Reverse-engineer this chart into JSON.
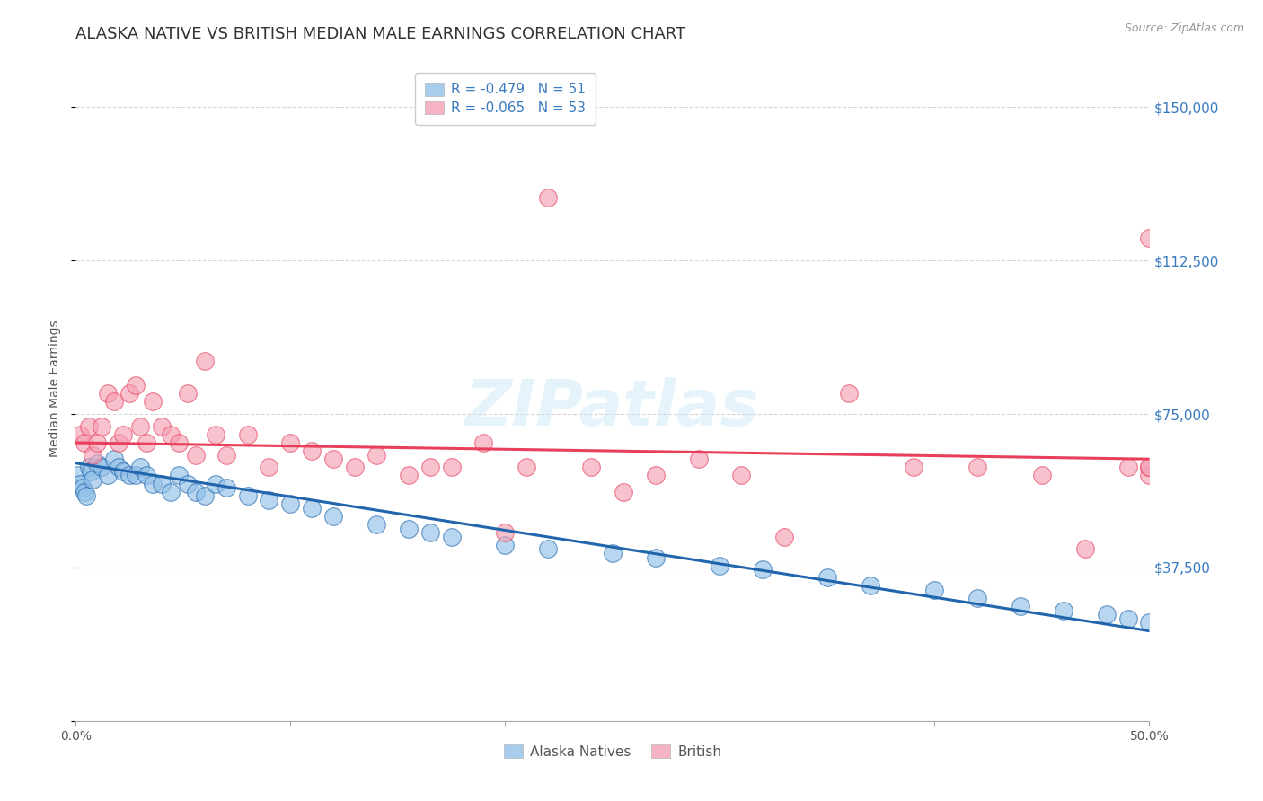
{
  "title": "ALASKA NATIVE VS BRITISH MEDIAN MALE EARNINGS CORRELATION CHART",
  "source": "Source: ZipAtlas.com",
  "ylabel": "Median Male Earnings",
  "yticks": [
    0,
    37500,
    75000,
    112500,
    150000
  ],
  "ytick_labels": [
    "",
    "$37,500",
    "$75,000",
    "$112,500",
    "$150,000"
  ],
  "xlim": [
    0.0,
    0.5
  ],
  "ylim": [
    0,
    162500
  ],
  "legend_r_alaska": "-0.479",
  "legend_n_alaska": "51",
  "legend_r_british": "-0.065",
  "legend_n_british": "53",
  "color_alaska": "#92c0e8",
  "color_british": "#f4a0b5",
  "line_color_alaska": "#2166ac",
  "line_color_british": "#e8405a",
  "background_color": "#ffffff",
  "alaska_x": [
    0.001,
    0.002,
    0.003,
    0.004,
    0.005,
    0.006,
    0.007,
    0.008,
    0.01,
    0.012,
    0.015,
    0.018,
    0.02,
    0.022,
    0.025,
    0.028,
    0.03,
    0.033,
    0.036,
    0.04,
    0.044,
    0.048,
    0.052,
    0.056,
    0.06,
    0.065,
    0.07,
    0.08,
    0.09,
    0.1,
    0.11,
    0.12,
    0.14,
    0.155,
    0.165,
    0.175,
    0.2,
    0.22,
    0.25,
    0.27,
    0.3,
    0.32,
    0.35,
    0.37,
    0.4,
    0.42,
    0.44,
    0.46,
    0.48,
    0.49,
    0.5
  ],
  "alaska_y": [
    60000,
    58000,
    57000,
    56000,
    55000,
    62000,
    61000,
    59000,
    63000,
    62000,
    60000,
    64000,
    62000,
    61000,
    60000,
    60000,
    62000,
    60000,
    58000,
    58000,
    56000,
    60000,
    58000,
    56000,
    55000,
    58000,
    57000,
    55000,
    54000,
    53000,
    52000,
    50000,
    48000,
    47000,
    46000,
    45000,
    43000,
    42000,
    41000,
    40000,
    38000,
    37000,
    35000,
    33000,
    32000,
    30000,
    28000,
    27000,
    26000,
    25000,
    24000
  ],
  "british_x": [
    0.002,
    0.004,
    0.006,
    0.008,
    0.01,
    0.012,
    0.015,
    0.018,
    0.02,
    0.022,
    0.025,
    0.028,
    0.03,
    0.033,
    0.036,
    0.04,
    0.044,
    0.048,
    0.052,
    0.056,
    0.06,
    0.065,
    0.07,
    0.08,
    0.09,
    0.1,
    0.11,
    0.12,
    0.13,
    0.14,
    0.155,
    0.165,
    0.175,
    0.19,
    0.2,
    0.21,
    0.22,
    0.24,
    0.255,
    0.27,
    0.29,
    0.31,
    0.33,
    0.36,
    0.39,
    0.42,
    0.45,
    0.47,
    0.49,
    0.5,
    0.5,
    0.5,
    0.5
  ],
  "british_y": [
    70000,
    68000,
    72000,
    65000,
    68000,
    72000,
    80000,
    78000,
    68000,
    70000,
    80000,
    82000,
    72000,
    68000,
    78000,
    72000,
    70000,
    68000,
    80000,
    65000,
    88000,
    70000,
    65000,
    70000,
    62000,
    68000,
    66000,
    64000,
    62000,
    65000,
    60000,
    62000,
    62000,
    68000,
    46000,
    62000,
    128000,
    62000,
    56000,
    60000,
    64000,
    60000,
    45000,
    80000,
    62000,
    62000,
    60000,
    42000,
    62000,
    60000,
    62000,
    62000,
    118000
  ],
  "watermark_text": "ZIPatlas",
  "title_fontsize": 13,
  "tick_fontsize": 10,
  "legend_fontsize": 11
}
